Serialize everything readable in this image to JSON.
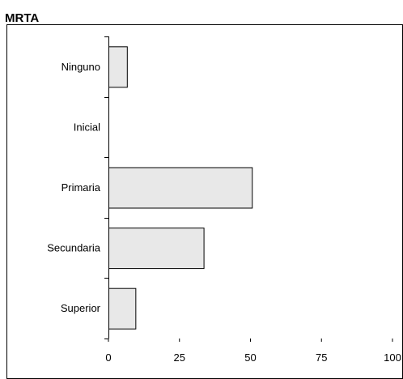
{
  "chart_data": {
    "type": "bar",
    "orientation": "horizontal",
    "title": "MRTA",
    "categories": [
      "Ninguno",
      "Inicial",
      "Primaria",
      "Secundaria",
      "Superior"
    ],
    "values": [
      6.5,
      0,
      50.5,
      33.5,
      9.5
    ],
    "xlim": [
      0,
      100
    ],
    "xticks": [
      "0",
      "25",
      "50",
      "75",
      "100"
    ],
    "xlabel": "",
    "ylabel": "",
    "grid": false,
    "bar_color": "#e8e8e8",
    "bar_edge_color": "#000000"
  }
}
